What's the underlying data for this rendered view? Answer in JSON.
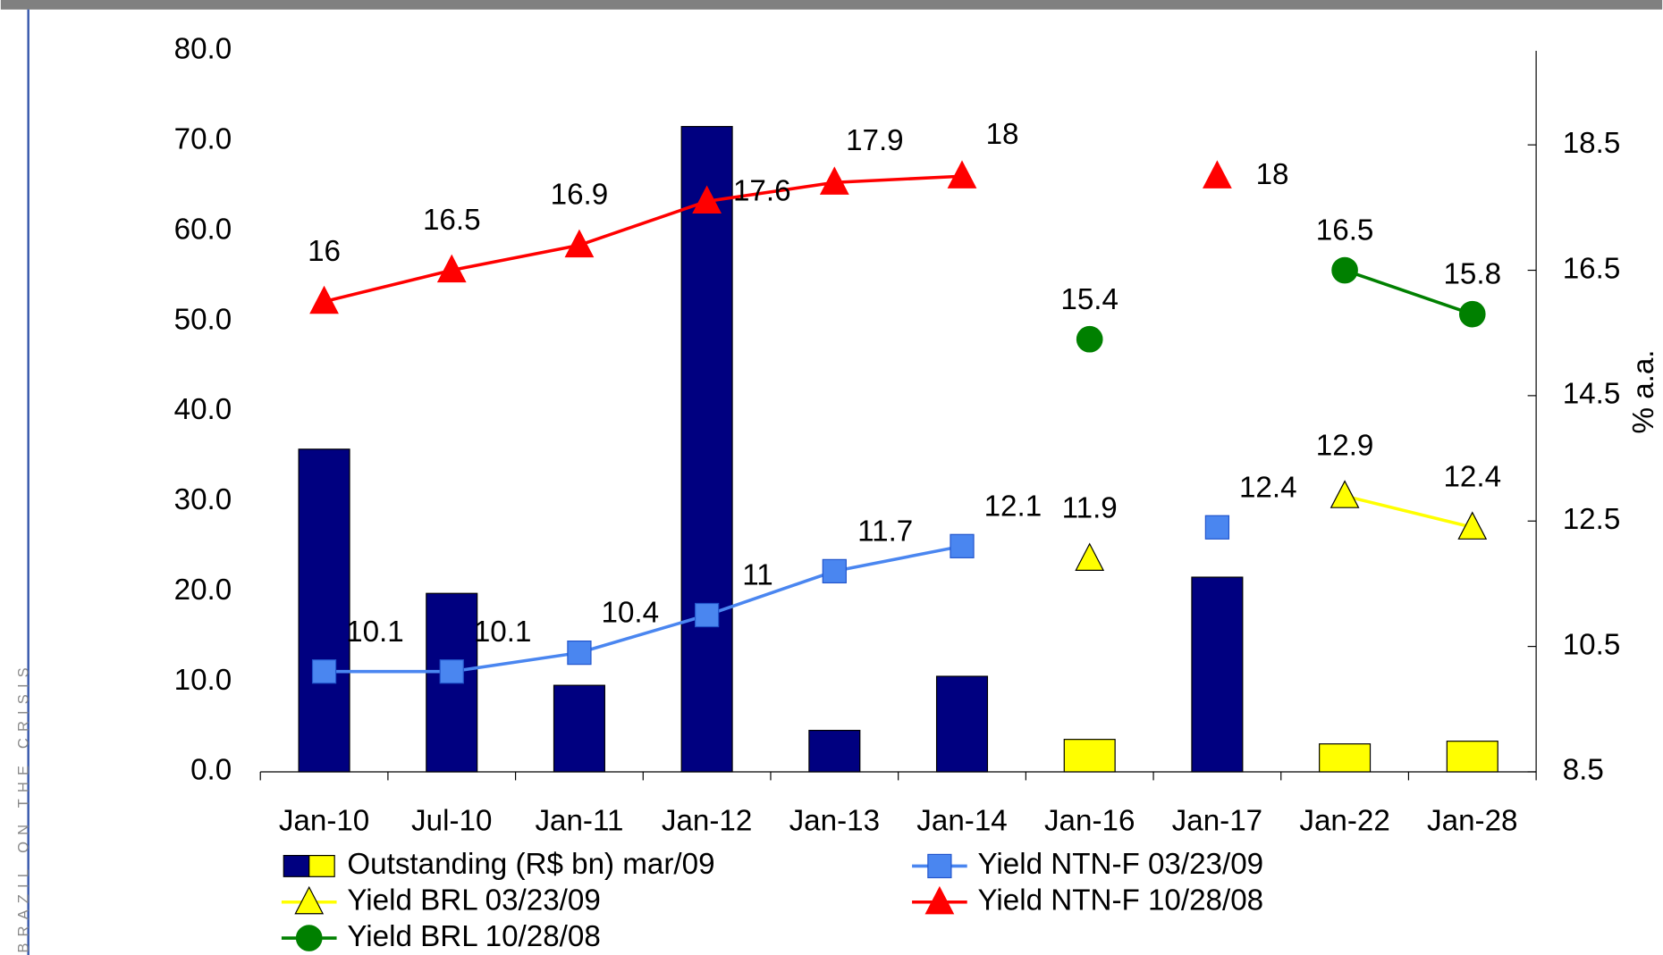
{
  "sidebar_text": "BRAZIL ON THE CRISIS",
  "chart_data": {
    "type": "bar",
    "categories": [
      "Jan-10",
      "Jul-10",
      "Jan-11",
      "Jan-12",
      "Jan-13",
      "Jan-14",
      "Jan-16",
      "Jan-17",
      "Jan-22",
      "Jan-28"
    ],
    "ylim": [
      0,
      80
    ],
    "yticks": [
      {
        "value": 0,
        "label": "0.0"
      },
      {
        "value": 10,
        "label": "10.0"
      },
      {
        "value": 20,
        "label": "20.0"
      },
      {
        "value": 30,
        "label": "30.0"
      },
      {
        "value": 40,
        "label": "40.0"
      },
      {
        "value": 50,
        "label": "50.0"
      },
      {
        "value": 60,
        "label": "60.0"
      },
      {
        "value": 70,
        "label": "70.0"
      },
      {
        "value": 80,
        "label": "80.0"
      }
    ],
    "y2lim": [
      8.5,
      20
    ],
    "y2ticks": [
      8.5,
      10.5,
      12.5,
      14.5,
      16.5,
      18.5
    ],
    "y2label": "% a.a.",
    "series": [
      {
        "name": "Outstanding (R$ bn) mar/09",
        "type": "bar",
        "colors": [
          "#000080",
          "#000080",
          "#000080",
          "#000080",
          "#000080",
          "#000080",
          "#ffff00",
          "#000080",
          "#ffff00",
          "#ffff00"
        ],
        "values": [
          35.8,
          19.8,
          9.6,
          71.6,
          4.6,
          10.6,
          3.6,
          21.6,
          3.1,
          3.4
        ]
      },
      {
        "name": "Yield NTN-F 03/23/09",
        "type": "line",
        "axis": "y2",
        "marker": "square",
        "color": "#4a86f0",
        "values": [
          10.1,
          10.1,
          10.4,
          11.0,
          11.7,
          12.1,
          null,
          12.4,
          null,
          null
        ]
      },
      {
        "name": "Yield BRL 03/23/09",
        "type": "line",
        "axis": "y2",
        "marker": "triangle",
        "color": "#ffff00",
        "values": [
          null,
          null,
          null,
          null,
          null,
          null,
          11.9,
          null,
          12.9,
          12.4
        ]
      },
      {
        "name": "Yield NTN-F 10/28/08",
        "type": "line",
        "axis": "y2",
        "marker": "triangle",
        "color": "#ff0000",
        "values": [
          16.0,
          16.5,
          16.9,
          17.6,
          17.9,
          18.0,
          null,
          18.0,
          null,
          null
        ]
      },
      {
        "name": "Yield BRL 10/28/08",
        "type": "line",
        "axis": "y2",
        "marker": "circle",
        "color": "#008000",
        "values": [
          null,
          null,
          null,
          null,
          null,
          null,
          15.4,
          null,
          16.5,
          15.8
        ]
      }
    ]
  }
}
